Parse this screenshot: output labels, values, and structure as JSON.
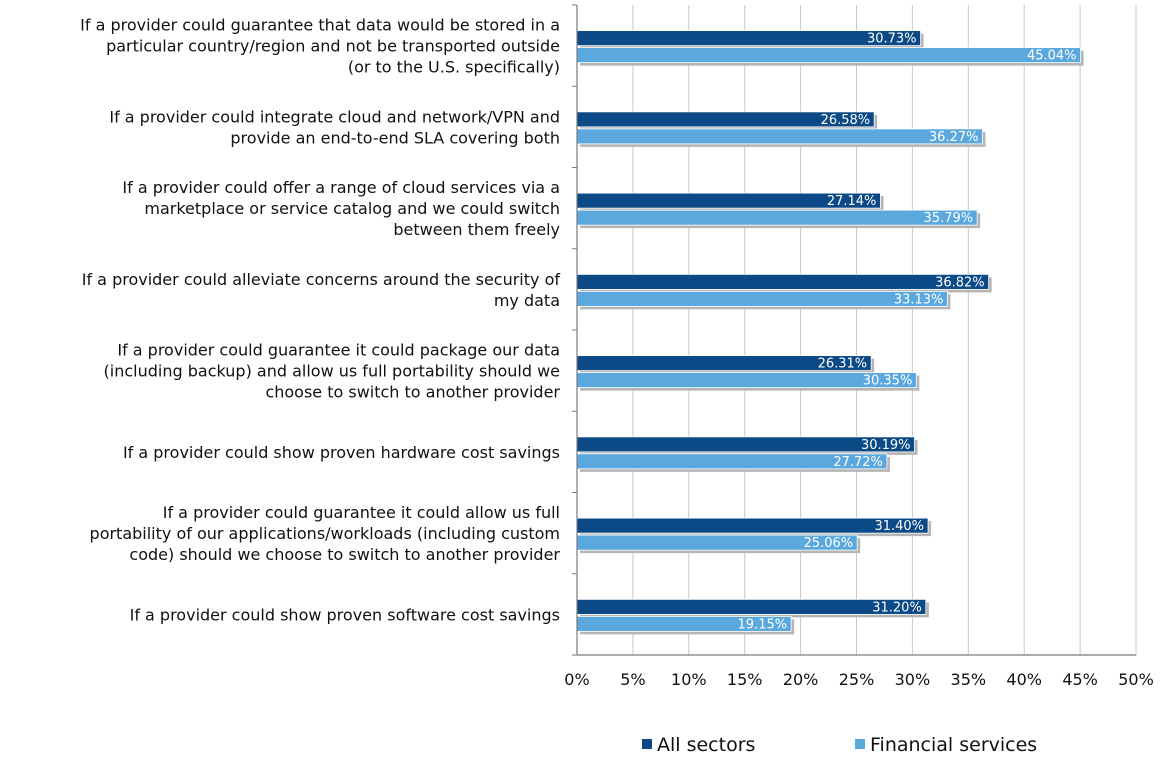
{
  "chart_data": {
    "type": "bar",
    "orientation": "horizontal",
    "categories": [
      [
        "If a provider could guarantee that data would be stored in a",
        "particular country/region and not be transported outside",
        "(or to the U.S. specifically)"
      ],
      [
        "If a provider could integrate cloud and network/VPN and",
        "provide an end-to-end SLA covering both"
      ],
      [
        "If a provider could offer a range of cloud services via a",
        "marketplace or service catalog and we could switch",
        "between them freely"
      ],
      [
        "If a provider could alleviate concerns around the security of",
        "my data"
      ],
      [
        "If a provider could guarantee it could package our data",
        "(including backup) and allow us full portability should we",
        "choose to switch to another provider"
      ],
      [
        "If a provider could show proven hardware cost savings"
      ],
      [
        "If a provider could guarantee it could allow us full",
        "portability of our applications/workloads (including custom",
        "code) should we choose to switch to another provider"
      ],
      [
        "If a provider could show proven software cost savings"
      ]
    ],
    "series": [
      {
        "name": "All sectors",
        "color": "#0b4a86",
        "values": [
          30.73,
          26.58,
          27.14,
          36.82,
          26.31,
          30.19,
          31.4,
          31.2
        ],
        "labels": [
          "30.73%",
          "26.58%",
          "27.14%",
          "36.82%",
          "26.31%",
          "30.19%",
          "31.40%",
          "31.20%"
        ]
      },
      {
        "name": "Financial services",
        "color": "#5ba8df",
        "values": [
          45.04,
          36.27,
          35.79,
          33.13,
          30.35,
          27.72,
          25.06,
          19.15
        ],
        "labels": [
          "45.04%",
          "36.27%",
          "35.79%",
          "33.13%",
          "30.35%",
          "27.72%",
          "25.06%",
          "19.15%"
        ]
      }
    ],
    "xlim": [
      0,
      50
    ],
    "x_ticks": [
      "0%",
      "5%",
      "10%",
      "15%",
      "20%",
      "25%",
      "30%",
      "35%",
      "40%",
      "45%",
      "50%"
    ],
    "grid": true,
    "legend": "bottom"
  }
}
